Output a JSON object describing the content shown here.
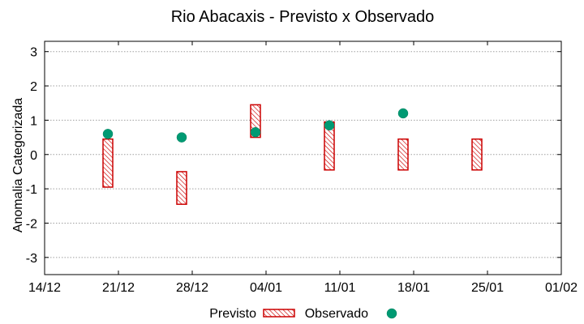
{
  "chart_data": {
    "type": "scatter",
    "title": "Rio Abacaxis - Previsto x Observado",
    "xlabel": "",
    "ylabel": "Anomalia Categorizada",
    "x_tick_labels": [
      "14/12",
      "21/12",
      "28/12",
      "04/01",
      "11/01",
      "18/01",
      "25/01",
      "01/02"
    ],
    "x_ticks_days": [
      0,
      7,
      14,
      21,
      28,
      35,
      42,
      49
    ],
    "xlim_days": [
      0,
      49
    ],
    "y_ticks": [
      -3,
      -2,
      -1,
      0,
      1,
      2,
      3
    ],
    "y_tick_labels": [
      "-3",
      "-2",
      "-1",
      "0",
      "1",
      "2",
      "3"
    ],
    "ylim": [
      -3.5,
      3.3
    ],
    "grid": true,
    "legend_position": "bottom",
    "series": [
      {
        "name": "Previsto",
        "kind": "range-box",
        "points": [
          {
            "day": 6,
            "low": -0.95,
            "high": 0.45
          },
          {
            "day": 13,
            "low": -1.45,
            "high": -0.5
          },
          {
            "day": 20,
            "low": 0.5,
            "high": 1.45
          },
          {
            "day": 27,
            "low": -0.45,
            "high": 0.95
          },
          {
            "day": 34,
            "low": -0.45,
            "high": 0.45
          },
          {
            "day": 41,
            "low": -0.45,
            "high": 0.45
          }
        ]
      },
      {
        "name": "Observado",
        "kind": "point",
        "points": [
          {
            "day": 6,
            "value": 0.6
          },
          {
            "day": 13,
            "value": 0.5
          },
          {
            "day": 20,
            "value": 0.65
          },
          {
            "day": 27,
            "value": 0.85
          },
          {
            "day": 34,
            "value": 1.2
          }
        ]
      }
    ],
    "colors": {
      "forecast_stroke": "#cc0000",
      "forecast_hatch": "#cc0000",
      "observed_fill": "#009a73"
    }
  }
}
